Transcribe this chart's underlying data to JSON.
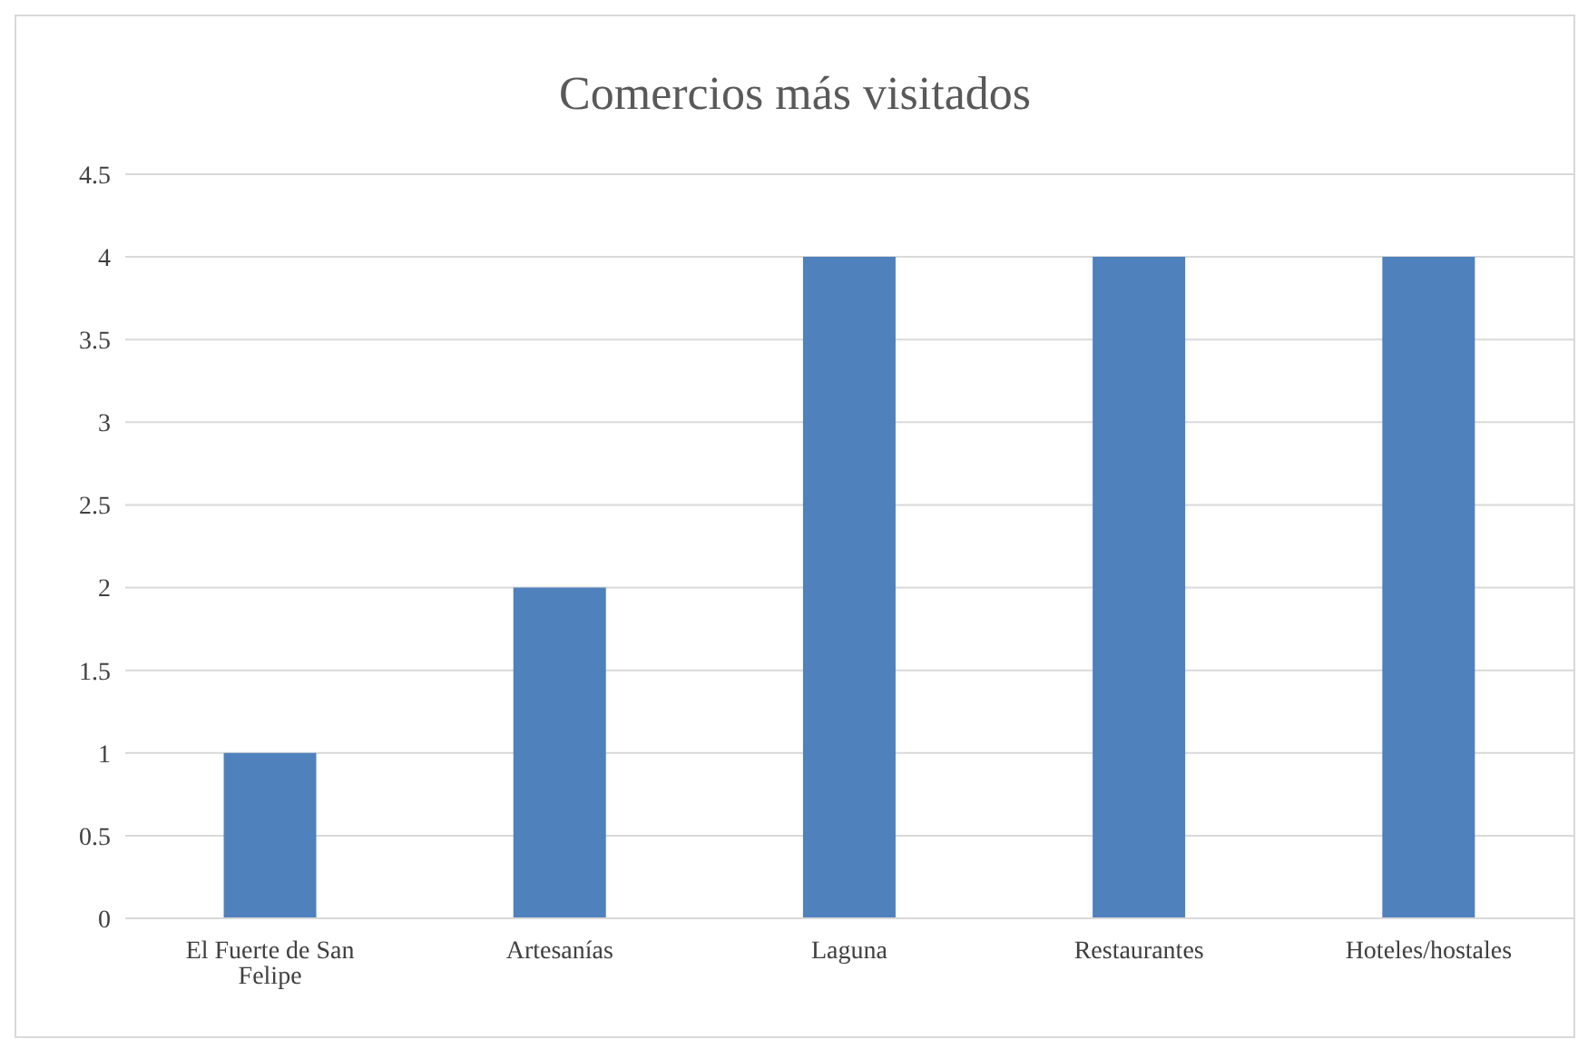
{
  "chart_data": {
    "type": "bar",
    "title": "Comercios más visitados",
    "categories": [
      "El Fuerte de San Felipe",
      "Artesanías",
      "Laguna",
      "Restaurantes",
      "Hoteles/hostales"
    ],
    "values": [
      1,
      2,
      4,
      4,
      4
    ],
    "color": "#4f81bd",
    "ylim": [
      0,
      4.5
    ],
    "yticks": [
      0,
      0.5,
      1,
      1.5,
      2,
      2.5,
      3,
      3.5,
      4,
      4.5
    ],
    "grid": "y",
    "legend": false
  }
}
